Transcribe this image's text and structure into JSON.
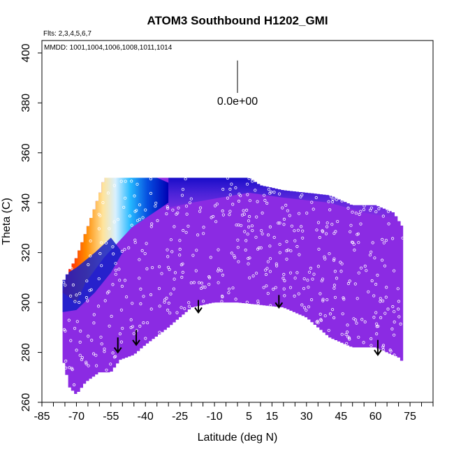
{
  "chart_data": {
    "type": "heatmap",
    "title": "ATOM3 Southbound H1202_GMI",
    "flights_label": "Flts: 2,3,4,5,6,7",
    "dates_label": "MMDD: 1001,1004,1006,1008,1011,1014",
    "xlabel": "Latitude (deg N)",
    "ylabel": "Theta (C)",
    "xlim": [
      -85,
      85
    ],
    "ylim": [
      260,
      405
    ],
    "x_ticks": [
      -85,
      -70,
      -55,
      -40,
      -25,
      -10,
      5,
      15,
      30,
      45,
      60,
      75
    ],
    "x_tick_labels": [
      "-85",
      "-70",
      "-55",
      "-40",
      "-25",
      "-10",
      "5",
      "15",
      "30",
      "45",
      "60",
      "75"
    ],
    "x_minor_step": 5,
    "y_ticks": [
      260,
      280,
      300,
      320,
      340,
      360,
      380,
      400
    ],
    "y_tick_labels": [
      "260",
      "280",
      "300",
      "320",
      "340",
      "360",
      "380",
      "400"
    ],
    "scale_label": "0.0e+00",
    "scale_line": {
      "x": 0,
      "y_top": 397,
      "y_bottom": 384
    },
    "color_scale": [
      "#8a2be2",
      "#0000c8",
      "#0a7ff0",
      "#3fc6ff",
      "#dff3ff",
      "#ffd27a",
      "#ff7f00",
      "#ff0000"
    ],
    "surface": {
      "bottom": [
        [
          -76,
          278
        ],
        [
          -73,
          266
        ],
        [
          -70,
          263
        ],
        [
          -66,
          268
        ],
        [
          -60,
          272
        ],
        [
          -55,
          272
        ],
        [
          -51,
          277
        ],
        [
          -45,
          279
        ],
        [
          -40,
          283
        ],
        [
          -30,
          290
        ],
        [
          -25,
          294
        ],
        [
          -20,
          298
        ],
        [
          -10,
          300
        ],
        [
          0,
          300
        ],
        [
          10,
          299
        ],
        [
          20,
          298
        ],
        [
          30,
          294
        ],
        [
          40,
          286
        ],
        [
          50,
          282
        ],
        [
          60,
          282
        ],
        [
          70,
          278
        ],
        [
          72,
          276
        ]
      ],
      "top": [
        [
          -76,
          308
        ],
        [
          -70,
          318
        ],
        [
          -64,
          333
        ],
        [
          -59,
          346
        ],
        [
          -58,
          350
        ],
        [
          5,
          350
        ],
        [
          10,
          347
        ],
        [
          20,
          345
        ],
        [
          30,
          344
        ],
        [
          40,
          343
        ],
        [
          50,
          339
        ],
        [
          60,
          339
        ],
        [
          68,
          336
        ],
        [
          72,
          330
        ]
      ]
    },
    "arrows": [
      {
        "lat": -52,
        "theta_top": 286,
        "theta_bottom": 280
      },
      {
        "lat": -44,
        "theta_top": 289,
        "theta_bottom": 283
      },
      {
        "lat": -17,
        "theta_top": 301,
        "theta_bottom": 296
      },
      {
        "lat": 18,
        "theta_top": 303,
        "theta_bottom": 298
      },
      {
        "lat": 61,
        "theta_top": 285,
        "theta_bottom": 279
      }
    ]
  }
}
